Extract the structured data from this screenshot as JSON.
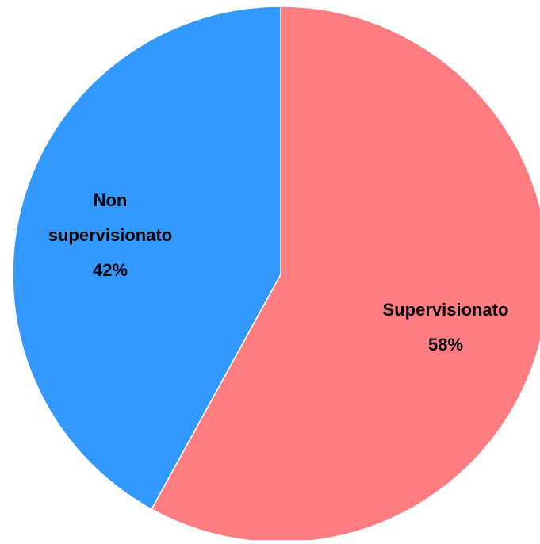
{
  "chart_data": {
    "type": "pie",
    "title": "",
    "slices": [
      {
        "label": "Supervisionato",
        "value": 58,
        "value_label": "58%",
        "color": "#FF7C80"
      },
      {
        "label": "Non supervisionato",
        "value": 42,
        "value_label": "42%",
        "color": "#3399FF"
      }
    ],
    "start_angle": "top (12 o'clock)",
    "direction": "clockwise",
    "legend": "none",
    "labels": "inside slices"
  }
}
